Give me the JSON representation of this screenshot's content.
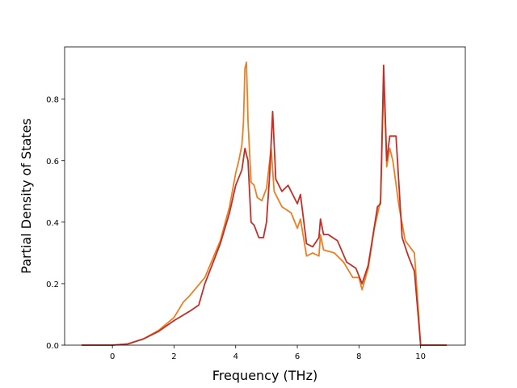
{
  "chart_data": {
    "type": "line",
    "title": "",
    "xlabel": "Frequency (THz)",
    "ylabel": "Partial Density of States",
    "xlim": [
      -1.55,
      11.45
    ],
    "ylim": [
      0.0,
      0.97
    ],
    "xticks": [
      0,
      2,
      4,
      6,
      8,
      10
    ],
    "yticks": [
      0.0,
      0.2,
      0.4,
      0.6,
      0.8
    ],
    "xtick_labels": [
      "0",
      "2",
      "4",
      "6",
      "8",
      "10"
    ],
    "ytick_labels": [
      "0.0",
      "0.2",
      "0.4",
      "0.6",
      "0.8"
    ],
    "grid": false,
    "legend": "none",
    "series": [
      {
        "color": "#e98124",
        "points": [
          [
            -1.0,
            0.0
          ],
          [
            0.0,
            0.0
          ],
          [
            0.5,
            0.004
          ],
          [
            1.0,
            0.02
          ],
          [
            1.5,
            0.048
          ],
          [
            2.0,
            0.09
          ],
          [
            2.3,
            0.14
          ],
          [
            2.5,
            0.16
          ],
          [
            3.0,
            0.22
          ],
          [
            3.5,
            0.34
          ],
          [
            3.8,
            0.45
          ],
          [
            4.0,
            0.56
          ],
          [
            4.1,
            0.6
          ],
          [
            4.2,
            0.65
          ],
          [
            4.25,
            0.72
          ],
          [
            4.3,
            0.9
          ],
          [
            4.35,
            0.92
          ],
          [
            4.4,
            0.73
          ],
          [
            4.5,
            0.53
          ],
          [
            4.6,
            0.52
          ],
          [
            4.7,
            0.48
          ],
          [
            4.85,
            0.47
          ],
          [
            5.0,
            0.51
          ],
          [
            5.15,
            0.64
          ],
          [
            5.25,
            0.5
          ],
          [
            5.5,
            0.45
          ],
          [
            5.8,
            0.43
          ],
          [
            6.0,
            0.38
          ],
          [
            6.1,
            0.41
          ],
          [
            6.3,
            0.29
          ],
          [
            6.5,
            0.3
          ],
          [
            6.7,
            0.29
          ],
          [
            6.75,
            0.36
          ],
          [
            6.85,
            0.31
          ],
          [
            7.2,
            0.3
          ],
          [
            7.5,
            0.27
          ],
          [
            7.8,
            0.22
          ],
          [
            8.0,
            0.22
          ],
          [
            8.1,
            0.18
          ],
          [
            8.3,
            0.25
          ],
          [
            8.5,
            0.38
          ],
          [
            8.7,
            0.47
          ],
          [
            8.8,
            0.85
          ],
          [
            8.85,
            0.74
          ],
          [
            8.9,
            0.58
          ],
          [
            9.0,
            0.64
          ],
          [
            9.1,
            0.6
          ],
          [
            9.3,
            0.45
          ],
          [
            9.5,
            0.34
          ],
          [
            9.8,
            0.3
          ],
          [
            9.9,
            0.15
          ],
          [
            10.0,
            0.0
          ],
          [
            10.85,
            0.0
          ]
        ]
      },
      {
        "color": "#c0302a",
        "points": [
          [
            -1.0,
            0.0
          ],
          [
            0.0,
            0.0
          ],
          [
            0.5,
            0.004
          ],
          [
            1.0,
            0.02
          ],
          [
            1.5,
            0.045
          ],
          [
            2.0,
            0.08
          ],
          [
            2.5,
            0.11
          ],
          [
            2.8,
            0.13
          ],
          [
            3.0,
            0.2
          ],
          [
            3.5,
            0.33
          ],
          [
            3.8,
            0.43
          ],
          [
            4.0,
            0.52
          ],
          [
            4.2,
            0.57
          ],
          [
            4.3,
            0.64
          ],
          [
            4.4,
            0.6
          ],
          [
            4.5,
            0.4
          ],
          [
            4.6,
            0.39
          ],
          [
            4.75,
            0.35
          ],
          [
            4.9,
            0.35
          ],
          [
            5.0,
            0.4
          ],
          [
            5.1,
            0.55
          ],
          [
            5.2,
            0.76
          ],
          [
            5.3,
            0.54
          ],
          [
            5.5,
            0.5
          ],
          [
            5.7,
            0.52
          ],
          [
            5.9,
            0.48
          ],
          [
            6.0,
            0.46
          ],
          [
            6.1,
            0.49
          ],
          [
            6.3,
            0.33
          ],
          [
            6.5,
            0.32
          ],
          [
            6.7,
            0.35
          ],
          [
            6.75,
            0.41
          ],
          [
            6.85,
            0.36
          ],
          [
            7.0,
            0.36
          ],
          [
            7.3,
            0.34
          ],
          [
            7.6,
            0.27
          ],
          [
            7.9,
            0.25
          ],
          [
            8.1,
            0.2
          ],
          [
            8.3,
            0.26
          ],
          [
            8.6,
            0.45
          ],
          [
            8.7,
            0.46
          ],
          [
            8.8,
            0.91
          ],
          [
            8.9,
            0.6
          ],
          [
            9.0,
            0.68
          ],
          [
            9.2,
            0.68
          ],
          [
            9.4,
            0.35
          ],
          [
            9.6,
            0.29
          ],
          [
            9.8,
            0.24
          ],
          [
            9.9,
            0.12
          ],
          [
            10.0,
            0.0
          ],
          [
            10.85,
            0.0
          ]
        ]
      }
    ]
  }
}
